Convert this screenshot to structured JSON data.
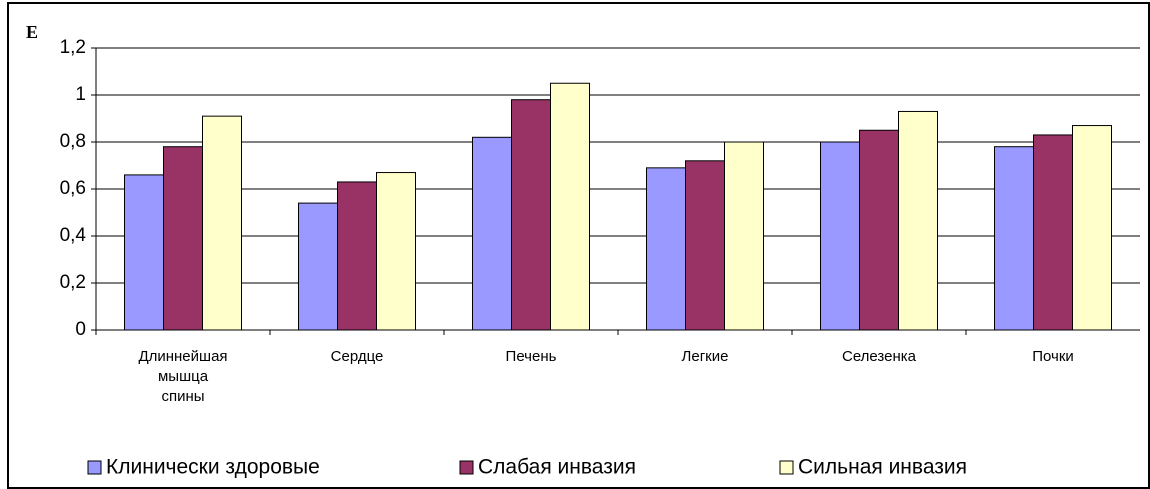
{
  "chart_data": {
    "type": "bar",
    "y_label": "E",
    "categories": [
      "Длиннейшая мышца спины",
      "Сердце",
      "Печень",
      "Легкие",
      "Селезенка",
      "Почки"
    ],
    "series": [
      {
        "name": "Клинически здоровые",
        "color": "#9999ff",
        "values": [
          0.66,
          0.54,
          0.82,
          0.69,
          0.8,
          0.78
        ]
      },
      {
        "name": "Слабая инвазия",
        "color": "#993366",
        "values": [
          0.78,
          0.63,
          0.98,
          0.72,
          0.85,
          0.83
        ]
      },
      {
        "name": "Сильная инвазия",
        "color": "#ffffcc",
        "values": [
          0.91,
          0.67,
          1.05,
          0.8,
          0.93,
          0.87
        ]
      }
    ],
    "ylim": [
      0,
      1.2
    ],
    "yticks": [
      0,
      {
        "value": 0.2,
        "label": "0,2"
      },
      {
        "value": 0.4,
        "label": "0,4"
      },
      {
        "value": 0.6,
        "label": "0,6"
      },
      {
        "value": 0.8,
        "label": "0,8"
      },
      1,
      {
        "value": 1.2,
        "label": "1,2"
      }
    ],
    "grid": true,
    "legend": "bottom"
  }
}
